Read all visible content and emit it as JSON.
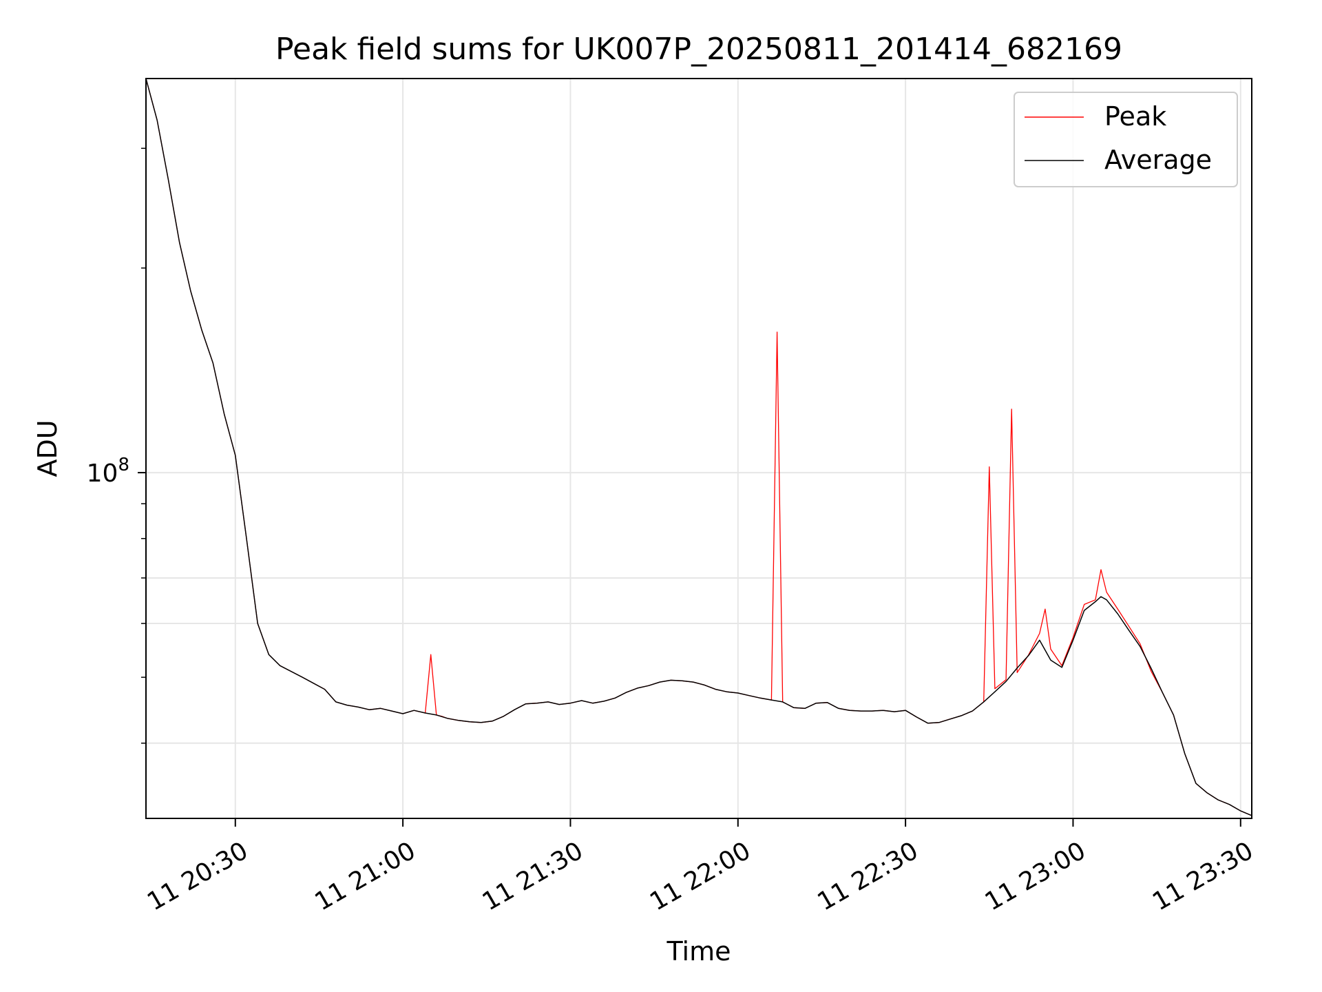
{
  "chart_data": {
    "type": "line",
    "title": "Peak field sums for UK007P_20250811_201414_682169",
    "xlabel": "Time",
    "ylabel": "ADU",
    "yscale": "log",
    "grid": true,
    "legend_position": "top-right",
    "x_tick_labels": [
      "11 20:30",
      "11 21:00",
      "11 21:30",
      "11 22:00",
      "11 22:30",
      "11 23:00",
      "11 23:30"
    ],
    "x_tick_times": [
      "20:30",
      "21:00",
      "21:30",
      "22:00",
      "22:30",
      "23:00",
      "23:30"
    ],
    "y_tick_label_base": "10",
    "y_tick_label_exp": "8",
    "xlim": [
      "20:14",
      "23:32"
    ],
    "ylim": [
      31000000,
      380000000
    ],
    "colors": {
      "peak": "#ff0000",
      "average": "#000000"
    },
    "series": [
      {
        "name": "Peak",
        "time": [
          "20:14",
          "20:16",
          "20:18",
          "20:20",
          "20:22",
          "20:24",
          "20:26",
          "20:28",
          "20:30",
          "20:32",
          "20:34",
          "20:36",
          "20:38",
          "20:40",
          "20:42",
          "20:44",
          "20:46",
          "20:48",
          "20:50",
          "20:52",
          "20:54",
          "20:56",
          "20:58",
          "21:00",
          "21:02",
          "21:04",
          "21:05",
          "21:06",
          "21:07",
          "21:08",
          "21:10",
          "21:12",
          "21:14",
          "21:16",
          "21:18",
          "21:20",
          "21:22",
          "21:24",
          "21:26",
          "21:28",
          "21:30",
          "21:32",
          "21:34",
          "21:36",
          "21:38",
          "21:40",
          "21:42",
          "21:44",
          "21:46",
          "21:48",
          "21:50",
          "21:52",
          "21:54",
          "21:56",
          "21:58",
          "22:00",
          "22:02",
          "22:04",
          "22:06",
          "22:07",
          "22:08",
          "22:10",
          "22:12",
          "22:14",
          "22:16",
          "22:18",
          "22:20",
          "22:22",
          "22:24",
          "22:26",
          "22:28",
          "22:30",
          "22:32",
          "22:34",
          "22:36",
          "22:38",
          "22:40",
          "22:42",
          "22:44",
          "22:45",
          "22:46",
          "22:48",
          "22:49",
          "22:50",
          "22:52",
          "22:54",
          "22:55",
          "22:56",
          "22:58",
          "23:00",
          "23:02",
          "23:04",
          "23:05",
          "23:06",
          "23:08",
          "23:10",
          "23:12",
          "23:14",
          "23:16",
          "23:18",
          "23:20",
          "23:22",
          "23:24",
          "23:26",
          "23:28",
          "23:30",
          "23:32"
        ],
        "values": [
          380000000,
          330000000,
          270000000,
          218000000,
          185000000,
          162000000,
          145000000,
          122000000,
          106000000,
          80000000,
          60000000,
          54000000,
          52000000,
          51000000,
          50000000,
          49000000,
          48000000,
          46000000,
          45500000,
          45200000,
          44800000,
          45000000,
          44600000,
          44200000,
          44700000,
          44300000,
          54000000,
          44000000,
          43800000,
          43500000,
          43200000,
          43000000,
          42900000,
          43100000,
          43800000,
          44800000,
          45700000,
          45800000,
          46000000,
          45600000,
          45800000,
          46200000,
          45800000,
          46100000,
          46600000,
          47500000,
          48200000,
          48600000,
          49200000,
          49500000,
          49400000,
          49200000,
          48700000,
          48000000,
          47600000,
          47400000,
          47000000,
          46600000,
          46300000,
          161000000,
          46000000,
          45100000,
          45000000,
          45800000,
          45900000,
          45000000,
          44700000,
          44600000,
          44600000,
          44700000,
          44500000,
          44700000,
          43700000,
          42800000,
          42900000,
          43400000,
          43900000,
          44600000,
          46000000,
          102000000,
          48100000,
          49600000,
          124000000,
          50800000,
          53900000,
          58000000,
          63000000,
          55000000,
          52000000,
          57200000,
          64000000,
          65000000,
          72000000,
          66700000,
          63000000,
          59400000,
          56000000,
          51000000,
          47500000,
          44000000,
          38600000,
          34900000,
          33800000,
          33000000,
          32500000,
          31800000,
          31300000
        ]
      },
      {
        "name": "Average",
        "time": [
          "20:14",
          "20:16",
          "20:18",
          "20:20",
          "20:22",
          "20:24",
          "20:26",
          "20:28",
          "20:30",
          "20:32",
          "20:34",
          "20:36",
          "20:38",
          "20:40",
          "20:42",
          "20:44",
          "20:46",
          "20:48",
          "20:50",
          "20:52",
          "20:54",
          "20:56",
          "20:58",
          "21:00",
          "21:02",
          "21:04",
          "21:06",
          "21:08",
          "21:10",
          "21:12",
          "21:14",
          "21:16",
          "21:18",
          "21:20",
          "21:22",
          "21:24",
          "21:26",
          "21:28",
          "21:30",
          "21:32",
          "21:34",
          "21:36",
          "21:38",
          "21:40",
          "21:42",
          "21:44",
          "21:46",
          "21:48",
          "21:50",
          "21:52",
          "21:54",
          "21:56",
          "21:58",
          "22:00",
          "22:02",
          "22:04",
          "22:06",
          "22:08",
          "22:10",
          "22:12",
          "22:14",
          "22:16",
          "22:18",
          "22:20",
          "22:22",
          "22:24",
          "22:26",
          "22:28",
          "22:30",
          "22:32",
          "22:34",
          "22:36",
          "22:38",
          "22:40",
          "22:42",
          "22:44",
          "22:46",
          "22:48",
          "22:50",
          "22:52",
          "22:54",
          "22:56",
          "22:58",
          "23:00",
          "23:02",
          "23:04",
          "23:05",
          "23:06",
          "23:08",
          "23:10",
          "23:12",
          "23:14",
          "23:16",
          "23:18",
          "23:20",
          "23:22",
          "23:24",
          "23:26",
          "23:28",
          "23:30",
          "23:32"
        ],
        "values": [
          380000000,
          330000000,
          270000000,
          218000000,
          185000000,
          162000000,
          145000000,
          122000000,
          106000000,
          80000000,
          60000000,
          54000000,
          52000000,
          51000000,
          50000000,
          49000000,
          48000000,
          46000000,
          45500000,
          45200000,
          44800000,
          45000000,
          44600000,
          44200000,
          44700000,
          44300000,
          44000000,
          43500000,
          43200000,
          43000000,
          42900000,
          43100000,
          43800000,
          44800000,
          45700000,
          45800000,
          46000000,
          45600000,
          45800000,
          46200000,
          45800000,
          46100000,
          46600000,
          47500000,
          48200000,
          48600000,
          49200000,
          49500000,
          49400000,
          49200000,
          48700000,
          48000000,
          47600000,
          47400000,
          47000000,
          46600000,
          46300000,
          46000000,
          45100000,
          45000000,
          45800000,
          45900000,
          45000000,
          44700000,
          44600000,
          44600000,
          44700000,
          44500000,
          44700000,
          43700000,
          42800000,
          42900000,
          43400000,
          43900000,
          44600000,
          46000000,
          47600000,
          49300000,
          51600000,
          53800000,
          56700000,
          53000000,
          51700000,
          56700000,
          62700000,
          64600000,
          65700000,
          65000000,
          62000000,
          58600000,
          55500000,
          51500000,
          47500000,
          44000000,
          38600000,
          34900000,
          33800000,
          33000000,
          32500000,
          31800000,
          31300000
        ]
      }
    ]
  }
}
